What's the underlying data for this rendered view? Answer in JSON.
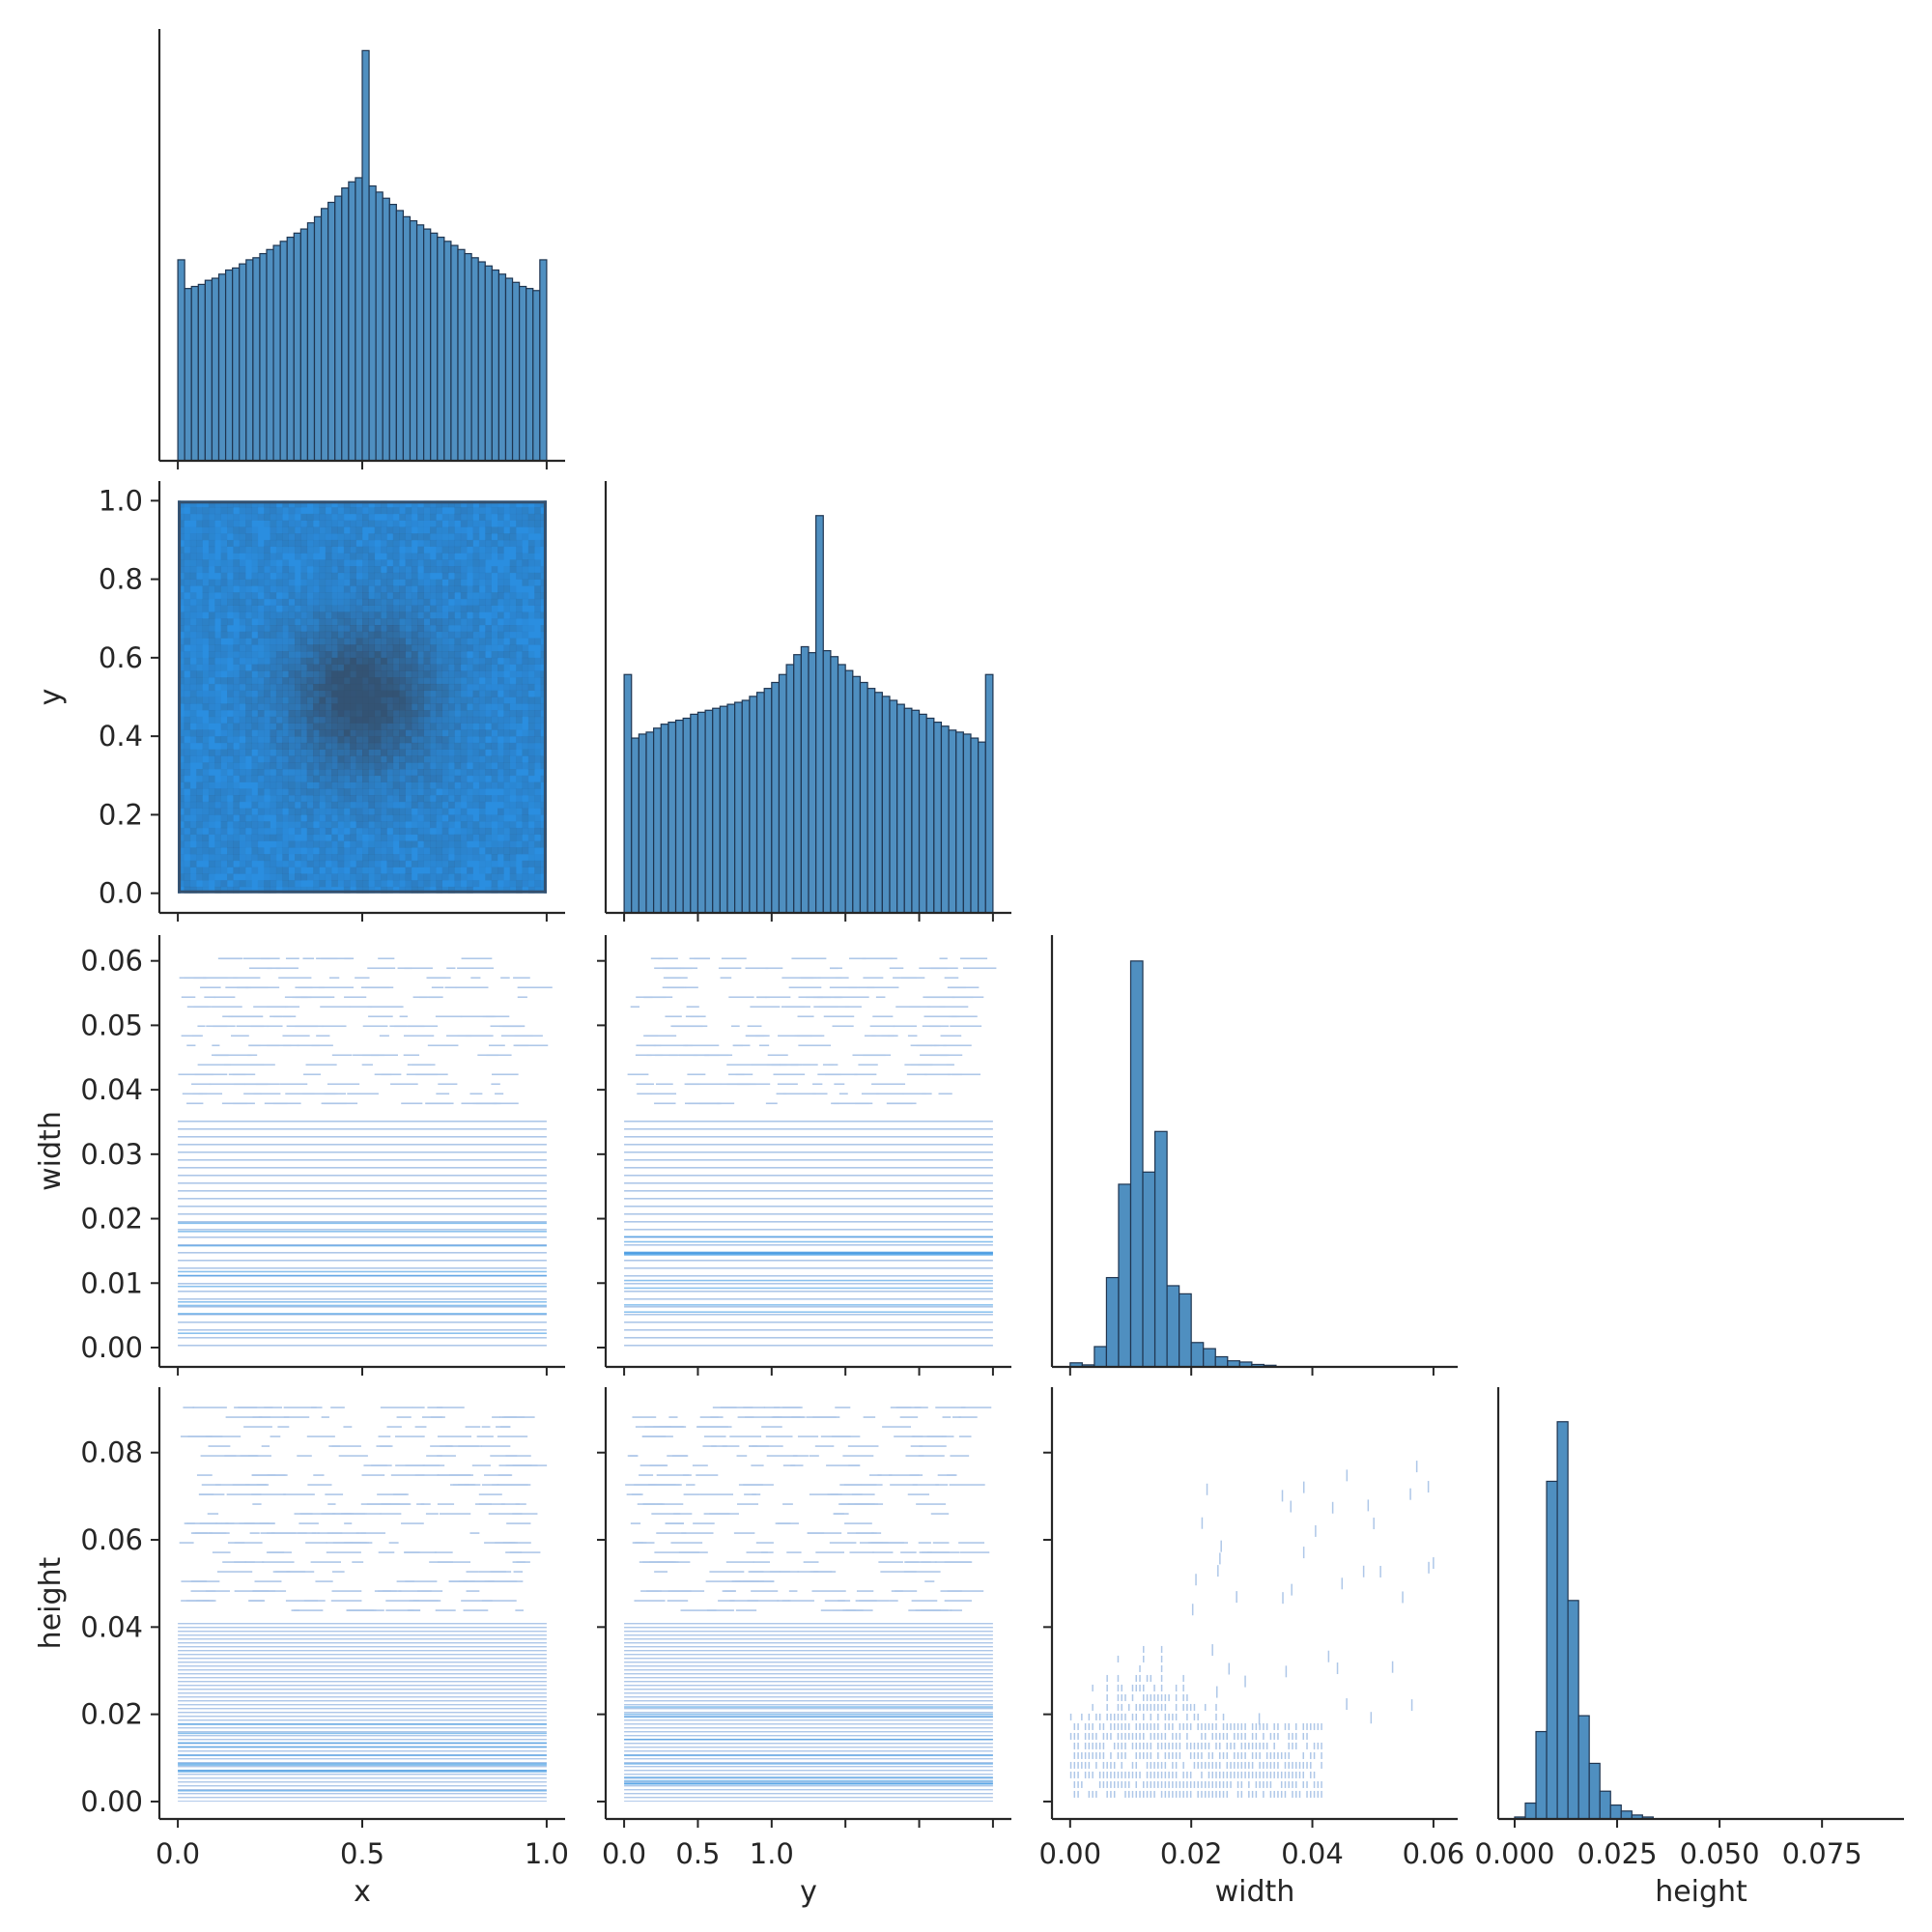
{
  "chart_data": {
    "type": "pairplot",
    "variables": [
      "x",
      "y",
      "width",
      "height"
    ],
    "layout": "corner (lower triangle): histograms on the diagonal, 2D histograms off-diagonal",
    "colors": {
      "bars": "#4f8fc0",
      "bar_edge": "#1f3550",
      "density_light": "#aec7e8",
      "density_mid": "#2a8ee0",
      "density_dark": "#34506e",
      "axis": "#262626"
    },
    "axes": {
      "x": {
        "label": "x",
        "range": [
          -0.05,
          1.05
        ],
        "ticks": [
          0.0,
          0.5,
          1.0
        ],
        "tick_labels": [
          "0.0",
          "0.5",
          "1.0"
        ]
      },
      "y": {
        "label": "y",
        "range": [
          -0.05,
          1.05
        ],
        "ticks": [
          0.0,
          0.2,
          0.4,
          0.6,
          0.8,
          1.0
        ],
        "tick_labels": [
          "0.0",
          "0.2",
          "0.4",
          "0.6",
          "0.8",
          "1.0"
        ],
        "x_tick_labels": [
          "0.0",
          "0.5",
          "1.0"
        ]
      },
      "width": {
        "label": "width",
        "range": [
          -0.003,
          0.064
        ],
        "ticks": [
          0.0,
          0.01,
          0.02,
          0.03,
          0.04,
          0.05,
          0.06
        ],
        "tick_labels": [
          "0.00",
          "0.01",
          "0.02",
          "0.03",
          "0.04",
          "0.05",
          "0.06"
        ],
        "x_ticks": [
          0.0,
          0.02,
          0.04,
          0.06
        ],
        "x_tick_labels": [
          "0.00",
          "0.02",
          "0.04",
          "0.06"
        ]
      },
      "height": {
        "label": "height",
        "range": [
          -0.004,
          0.095
        ],
        "ticks": [
          0.0,
          0.02,
          0.04,
          0.06,
          0.08
        ],
        "tick_labels": [
          "0.00",
          "0.02",
          "0.04",
          "0.06",
          "0.08"
        ],
        "x_ticks": [
          0.0,
          0.025,
          0.05,
          0.075
        ],
        "x_tick_labels": [
          "0.000",
          "0.025",
          "0.050",
          "0.075"
        ]
      }
    },
    "diagonal": {
      "x": {
        "bin_range": [
          0.0,
          1.0
        ],
        "relative_counts": [
          0.49,
          0.42,
          0.425,
          0.43,
          0.44,
          0.445,
          0.455,
          0.465,
          0.47,
          0.48,
          0.49,
          0.495,
          0.505,
          0.515,
          0.525,
          0.535,
          0.545,
          0.555,
          0.565,
          0.58,
          0.595,
          0.615,
          0.63,
          0.645,
          0.665,
          0.68,
          0.69,
          1.0,
          0.67,
          0.655,
          0.64,
          0.625,
          0.61,
          0.595,
          0.585,
          0.575,
          0.565,
          0.555,
          0.545,
          0.535,
          0.525,
          0.515,
          0.505,
          0.495,
          0.485,
          0.475,
          0.465,
          0.455,
          0.445,
          0.435,
          0.425,
          0.42,
          0.415,
          0.49
        ]
      },
      "y": {
        "bin_range": [
          0.0,
          1.0
        ],
        "relative_counts": [
          0.6,
          0.44,
          0.45,
          0.455,
          0.465,
          0.475,
          0.48,
          0.485,
          0.49,
          0.5,
          0.505,
          0.51,
          0.515,
          0.52,
          0.525,
          0.53,
          0.535,
          0.545,
          0.555,
          0.565,
          0.58,
          0.6,
          0.625,
          0.65,
          0.67,
          0.655,
          1.0,
          0.66,
          0.645,
          0.625,
          0.61,
          0.595,
          0.58,
          0.565,
          0.555,
          0.545,
          0.535,
          0.525,
          0.515,
          0.51,
          0.5,
          0.49,
          0.48,
          0.47,
          0.46,
          0.455,
          0.45,
          0.44,
          0.43,
          0.6
        ]
      },
      "width": {
        "bin_width": 0.002,
        "bin_starts": [
          0.0,
          0.002,
          0.004,
          0.006,
          0.008,
          0.01,
          0.012,
          0.014,
          0.016,
          0.018,
          0.02,
          0.022,
          0.024,
          0.026,
          0.028,
          0.03,
          0.032
        ],
        "relative_counts": [
          0.01,
          0.005,
          0.05,
          0.22,
          0.45,
          1.0,
          0.48,
          0.58,
          0.2,
          0.18,
          0.06,
          0.045,
          0.025,
          0.015,
          0.012,
          0.006,
          0.004
        ]
      },
      "height": {
        "bin_width": 0.0026,
        "bin_starts": [
          0.0,
          0.0026,
          0.0052,
          0.0078,
          0.0104,
          0.013,
          0.0156,
          0.0182,
          0.0208,
          0.0234,
          0.026,
          0.0286,
          0.0312
        ],
        "relative_counts": [
          0.005,
          0.04,
          0.22,
          0.85,
          1.0,
          0.55,
          0.26,
          0.14,
          0.07,
          0.035,
          0.02,
          0.01,
          0.005
        ]
      }
    }
  }
}
